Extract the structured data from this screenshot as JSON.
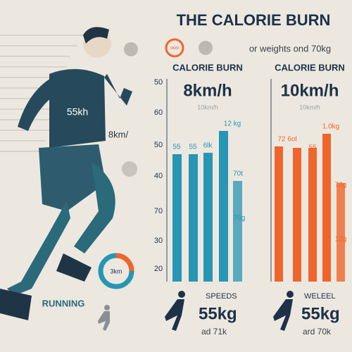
{
  "header": {
    "title": "THE CALORIE BURN",
    "badge": "ooo",
    "subtitle": "or weights ond 70kg"
  },
  "runner": {
    "shirt_label": "55kh",
    "speed_label": "8km/",
    "donut_label": "3km",
    "caption": "RUNNING"
  },
  "panels": [
    {
      "heading": "CALORIE BURN",
      "speed": "8km/h",
      "faded_speed": "10km/h",
      "axis_labels": [
        "50",
        "60",
        "50",
        "40",
        "70",
        "30",
        "20"
      ],
      "bar_labels": [
        "55",
        "55",
        "6lk",
        "12 kg",
        "70t",
        "70g"
      ],
      "footer": {
        "label": "SPEEDS",
        "weight": "55kg",
        "note": "ad 71k"
      }
    },
    {
      "heading": "CALORIE BURN",
      "speed": "10km/h",
      "faded_speed": "10km/h",
      "bar_labels": [
        "72 6ol",
        "55",
        "1.0kg",
        "72g",
        "12g"
      ],
      "footer": {
        "label": "WELEEL",
        "weight": "55kg",
        "note": "ard 70k"
      }
    }
  ]
}
